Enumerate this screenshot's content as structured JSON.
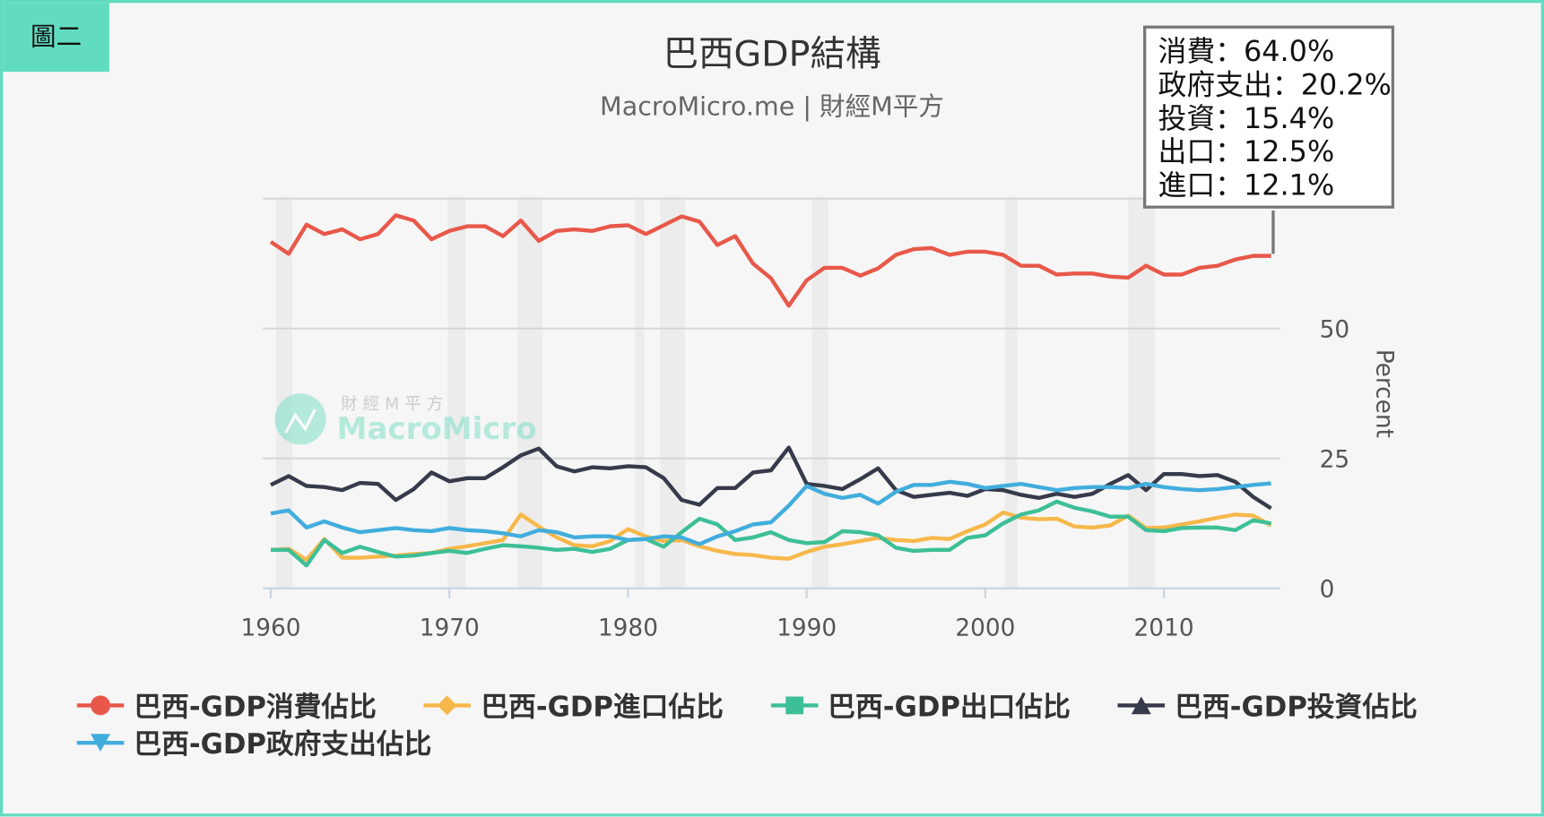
{
  "badge": "圖二",
  "chart_data": {
    "type": "line",
    "title": "巴西GDP結構",
    "subtitle": "MacroMicro.me | 財經M平方",
    "ylabel": "Percent",
    "xlabel": "",
    "ylim": [
      0,
      75
    ],
    "xlim": [
      1960,
      2016
    ],
    "yticks": [
      "0",
      "25",
      "50"
    ],
    "xticks": [
      "1960",
      "1970",
      "1980",
      "1990",
      "2000",
      "2010"
    ],
    "grid": true,
    "legend_position": "bottom",
    "x": [
      1960,
      1961,
      1962,
      1963,
      1964,
      1965,
      1966,
      1967,
      1968,
      1969,
      1970,
      1971,
      1972,
      1973,
      1974,
      1975,
      1976,
      1977,
      1978,
      1979,
      1980,
      1981,
      1982,
      1983,
      1984,
      1985,
      1986,
      1987,
      1988,
      1989,
      1990,
      1991,
      1992,
      1993,
      1994,
      1995,
      1996,
      1997,
      1998,
      1999,
      2000,
      2001,
      2002,
      2003,
      2004,
      2005,
      2006,
      2007,
      2008,
      2009,
      2010,
      2011,
      2012,
      2013,
      2014,
      2015,
      2016
    ],
    "shaded_periods": [
      [
        1960.3,
        1961.2
      ],
      [
        1969.9,
        1970.9
      ],
      [
        1973.8,
        1975.2
      ],
      [
        1980.4,
        1980.9
      ],
      [
        1981.8,
        1983.2
      ],
      [
        1990.3,
        1991.2
      ],
      [
        2001.1,
        2001.8
      ],
      [
        2008.0,
        2009.5
      ]
    ],
    "series": [
      {
        "name": "巴西-GDP消費佔比",
        "color": "#e8584a",
        "marker": "circle",
        "values": [
          66.7,
          64.4,
          70.0,
          68.2,
          69.1,
          67.2,
          68.2,
          71.8,
          70.8,
          67.2,
          68.8,
          69.7,
          69.7,
          67.8,
          70.8,
          66.9,
          68.8,
          69.1,
          68.8,
          69.7,
          69.9,
          68.2,
          69.9,
          71.6,
          70.6,
          66.1,
          67.8,
          62.5,
          59.7,
          54.4,
          59.3,
          61.7,
          61.7,
          60.2,
          61.6,
          64.2,
          65.3,
          65.5,
          64.2,
          64.8,
          64.8,
          64.2,
          62.1,
          62.1,
          60.4,
          60.6,
          60.6,
          60.0,
          59.8,
          62.1,
          60.4,
          60.4,
          61.7,
          62.1,
          63.3,
          64.0,
          64.0
        ]
      },
      {
        "name": "巴西-GDP進口佔比",
        "color": "#f7b84b",
        "marker": "diamond",
        "values": [
          7.4,
          7.6,
          5.5,
          9.5,
          5.9,
          5.9,
          6.1,
          6.3,
          6.6,
          6.8,
          7.6,
          8.1,
          8.7,
          9.3,
          14.2,
          11.9,
          9.8,
          8.3,
          8.1,
          9.1,
          11.4,
          10.0,
          9.1,
          9.3,
          8.1,
          7.2,
          6.6,
          6.4,
          5.9,
          5.7,
          7.0,
          8.0,
          8.5,
          9.1,
          9.7,
          9.3,
          9.1,
          9.7,
          9.5,
          11.0,
          12.3,
          14.6,
          13.6,
          13.3,
          13.4,
          11.9,
          11.7,
          12.1,
          14.0,
          11.6,
          11.7,
          12.3,
          12.9,
          13.6,
          14.2,
          14.0,
          12.1
        ]
      },
      {
        "name": "巴西-GDP出口佔比",
        "color": "#3dbf98",
        "marker": "square",
        "values": [
          7.4,
          7.4,
          4.4,
          9.3,
          6.8,
          8.0,
          7.0,
          6.1,
          6.3,
          6.8,
          7.2,
          6.8,
          7.6,
          8.3,
          8.1,
          7.8,
          7.4,
          7.6,
          7.0,
          7.6,
          9.3,
          9.5,
          8.0,
          10.8,
          13.4,
          12.3,
          9.3,
          9.8,
          10.8,
          9.3,
          8.7,
          8.9,
          11.0,
          10.8,
          10.2,
          7.8,
          7.2,
          7.4,
          7.4,
          9.7,
          10.2,
          12.5,
          14.2,
          15.0,
          16.7,
          15.5,
          14.8,
          13.8,
          13.8,
          11.2,
          11.0,
          11.6,
          11.7,
          11.7,
          11.2,
          13.1,
          12.5
        ]
      },
      {
        "name": "巴西-GDP投資佔比",
        "color": "#363a4a",
        "marker": "triangle",
        "values": [
          19.9,
          21.6,
          19.7,
          19.5,
          18.9,
          20.3,
          20.1,
          17.0,
          19.1,
          22.3,
          20.6,
          21.2,
          21.2,
          23.3,
          25.6,
          26.9,
          23.5,
          22.5,
          23.3,
          23.1,
          23.5,
          23.3,
          21.2,
          17.0,
          16.1,
          19.3,
          19.3,
          22.3,
          22.7,
          27.1,
          20.1,
          19.7,
          19.1,
          21.0,
          23.1,
          18.9,
          17.6,
          18.0,
          18.4,
          17.8,
          19.1,
          18.9,
          18.0,
          17.4,
          18.2,
          17.6,
          18.2,
          20.1,
          21.8,
          18.9,
          22.0,
          22.0,
          21.6,
          21.8,
          20.5,
          17.6,
          15.4
        ]
      },
      {
        "name": "巴西-GDP政府支出佔比",
        "color": "#41addd",
        "marker": "triangle-down",
        "values": [
          14.4,
          15.0,
          11.7,
          12.9,
          11.7,
          10.8,
          11.2,
          11.6,
          11.2,
          11.0,
          11.6,
          11.2,
          11.0,
          10.6,
          10.0,
          11.2,
          10.8,
          9.8,
          10.0,
          10.0,
          9.3,
          9.5,
          10.0,
          9.8,
          8.5,
          10.0,
          11.0,
          12.3,
          12.7,
          15.9,
          19.7,
          18.2,
          17.4,
          18.0,
          16.3,
          18.6,
          19.9,
          19.9,
          20.5,
          20.1,
          19.3,
          19.7,
          20.1,
          19.5,
          18.9,
          19.3,
          19.5,
          19.5,
          19.3,
          20.1,
          19.5,
          19.1,
          18.9,
          19.1,
          19.5,
          19.9,
          20.2
        ]
      }
    ],
    "watermark": {
      "line1": "財 經 M 平 方",
      "line2": "MacroMicro"
    },
    "tooltip": [
      "消費：64.0%",
      "政府支出：20.2%",
      "投資：15.4%",
      "出口：12.5%",
      "進口：12.1%"
    ]
  }
}
